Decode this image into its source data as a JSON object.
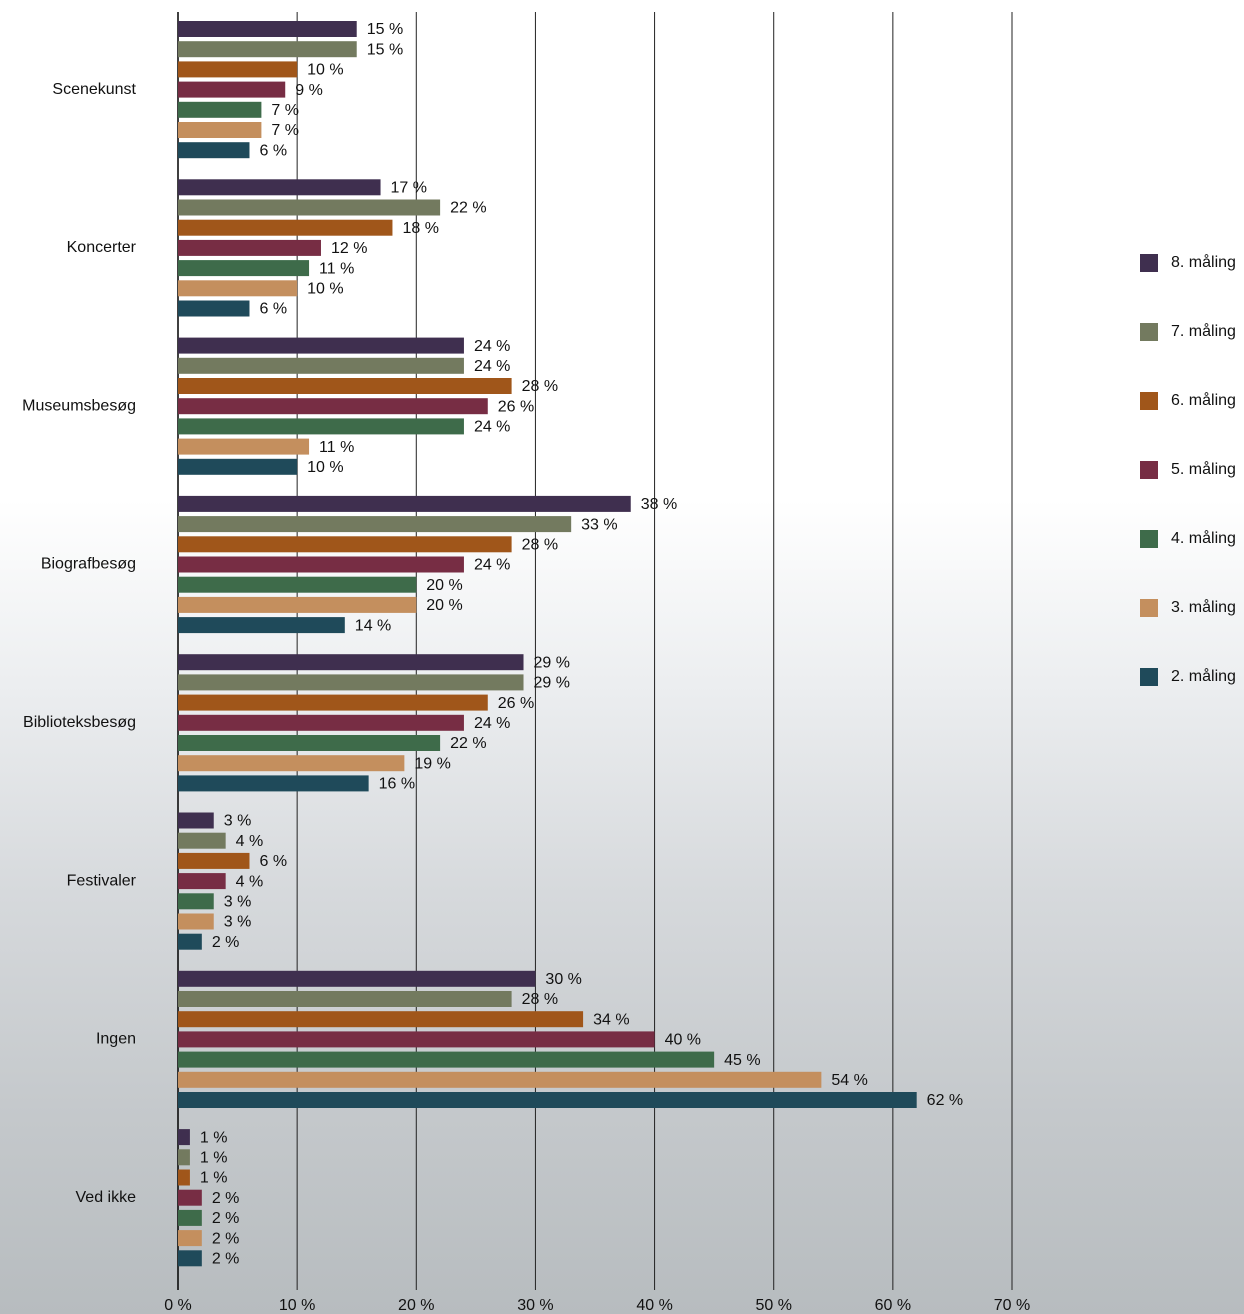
{
  "chart_data": {
    "type": "bar",
    "orientation": "horizontal",
    "categories": [
      "Scenekunst",
      "Koncerter",
      "Museumsbesøg",
      "Biografbesøg",
      "Biblioteksbesøg",
      "Festivaler",
      "Ingen",
      "Ved ikke"
    ],
    "series": [
      {
        "name": "8. måling",
        "color": "#3f2f4f",
        "values": [
          15,
          17,
          24,
          38,
          29,
          3,
          30,
          1
        ],
        "value_labels": [
          "15 %",
          "17 %",
          "24 %",
          "38 %",
          "29 %",
          "3 %",
          "30 %",
          "1 %"
        ]
      },
      {
        "name": "7. måling",
        "color": "#737a5f",
        "values": [
          15,
          22,
          24,
          33,
          29,
          4,
          28,
          1
        ],
        "value_labels": [
          "15 %",
          "22 %",
          "24 %",
          "33 %",
          "29 %",
          "4 %",
          "28 %",
          "1 %"
        ]
      },
      {
        "name": "6. måling",
        "color": "#a0561a",
        "values": [
          10,
          18,
          28,
          28,
          26,
          6,
          34,
          1
        ],
        "value_labels": [
          "10 %",
          "18 %",
          "28 %",
          "28 %",
          "26 %",
          "6 %",
          "34 %",
          "1 %"
        ]
      },
      {
        "name": "5. måling",
        "color": "#772d44",
        "values": [
          9,
          12,
          26,
          24,
          24,
          4,
          40,
          2
        ],
        "value_labels": [
          "9 %",
          "12 %",
          "26 %",
          "24 %",
          "24 %",
          "4 %",
          "40 %",
          "2 %"
        ]
      },
      {
        "name": "4. måling",
        "color": "#3e6b4a",
        "values": [
          7,
          11,
          24,
          20,
          22,
          3,
          45,
          2
        ],
        "value_labels": [
          "7 %",
          "11 %",
          "24 %",
          "20 %",
          "22 %",
          "3 %",
          "45 %",
          "2 %"
        ]
      },
      {
        "name": "3. måling",
        "color": "#c48f5e",
        "values": [
          7,
          10,
          11,
          20,
          19,
          3,
          54,
          2
        ],
        "value_labels": [
          "7 %",
          "10 %",
          "11 %",
          "20 %",
          "19 %",
          "3 %",
          "54 %",
          "2 %"
        ]
      },
      {
        "name": "2. måling",
        "color": "#1f4a5a",
        "values": [
          6,
          6,
          10,
          14,
          16,
          2,
          62,
          2
        ],
        "value_labels": [
          "6 %",
          "6 %",
          "10 %",
          "14 %",
          "16 %",
          "2 %",
          "62 %",
          "2 %"
        ]
      }
    ],
    "xlim": [
      0,
      70
    ],
    "xticks": [
      {
        "value": 0,
        "label": "0 %"
      },
      {
        "value": 10,
        "label": "10 %"
      },
      {
        "value": 20,
        "label": "20 %"
      },
      {
        "value": 30,
        "label": "30 %"
      },
      {
        "value": 40,
        "label": "40 %"
      },
      {
        "value": 50,
        "label": "50 %"
      },
      {
        "value": 60,
        "label": "60 %"
      },
      {
        "value": 70,
        "label": "70 %"
      }
    ],
    "grid": true,
    "legend": "right"
  }
}
